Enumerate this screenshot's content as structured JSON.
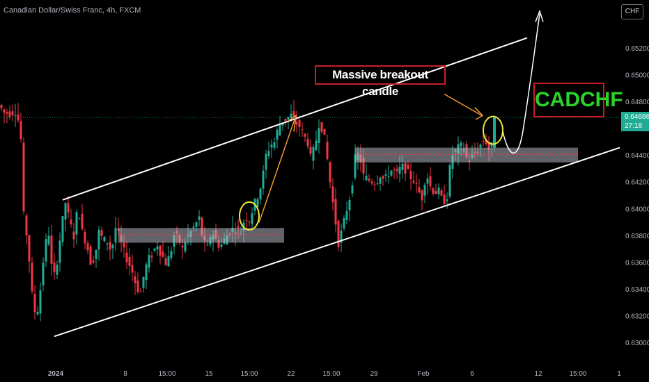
{
  "header": {
    "symbol_title": "Canadian Dollar/Swiss Franc, 4h, FXCM",
    "currency_button": "CHF"
  },
  "annotations": {
    "breakout_label": "Massive breakout candle",
    "pair_label": "CADCHF"
  },
  "price_tag": {
    "price": "0.64686",
    "countdown": "27:18",
    "color": "#22ab94"
  },
  "colors": {
    "background": "#000000",
    "bull": "#22ab94",
    "bear": "#f23645",
    "channel": "#ffffff",
    "zone": "#b2b5be",
    "marker": "#f2e83c",
    "arrow": "#f09a31",
    "box_border": "#c62026",
    "pair_text": "#2bd42b"
  },
  "chart_data": {
    "type": "candlestick",
    "title": "Canadian Dollar/Swiss Franc, 4h, FXCM",
    "y_range": [
      0.6296,
      0.6555
    ],
    "y_ticks": [
      0.63,
      0.632,
      0.634,
      0.636,
      0.638,
      0.64,
      0.642,
      0.644,
      0.646,
      0.648,
      0.65,
      0.652
    ],
    "y_tick_labels": [
      "0.63000",
      "0.63200",
      "0.63400",
      "0.63600",
      "0.63800",
      "0.64000",
      "0.64200",
      "0.64400",
      "0.64600",
      "0.64800",
      "0.65000",
      "0.65200"
    ],
    "x_ticks": [
      "2024",
      "8",
      "15:00",
      "15",
      "15:00",
      "22",
      "15:00",
      "29",
      "Feb",
      "6",
      "12",
      "15:00",
      "1"
    ],
    "last_price": 0.64686,
    "price_path": [
      [
        0,
        0.6478
      ],
      [
        8,
        0.6472
      ],
      [
        18,
        0.6472
      ],
      [
        26,
        0.6474
      ],
      [
        32,
        0.6452
      ],
      [
        36,
        0.6395
      ],
      [
        42,
        0.6375
      ],
      [
        48,
        0.6336
      ],
      [
        54,
        0.6318
      ],
      [
        60,
        0.634
      ],
      [
        66,
        0.6372
      ],
      [
        72,
        0.6382
      ],
      [
        78,
        0.6345
      ],
      [
        84,
        0.6362
      ],
      [
        90,
        0.6385
      ],
      [
        96,
        0.6405
      ],
      [
        102,
        0.639
      ],
      [
        108,
        0.638
      ],
      [
        114,
        0.6403
      ],
      [
        120,
        0.6383
      ],
      [
        126,
        0.6375
      ],
      [
        132,
        0.6361
      ],
      [
        138,
        0.6364
      ],
      [
        144,
        0.6383
      ],
      [
        150,
        0.6377
      ],
      [
        156,
        0.6376
      ],
      [
        162,
        0.6368
      ],
      [
        168,
        0.6386
      ],
      [
        174,
        0.6378
      ],
      [
        180,
        0.6368
      ],
      [
        186,
        0.6361
      ],
      [
        192,
        0.6353
      ],
      [
        198,
        0.6342
      ],
      [
        204,
        0.6338
      ],
      [
        210,
        0.6355
      ],
      [
        216,
        0.6363
      ],
      [
        222,
        0.6368
      ],
      [
        228,
        0.6374
      ],
      [
        234,
        0.6366
      ],
      [
        240,
        0.636
      ],
      [
        246,
        0.6365
      ],
      [
        252,
        0.6381
      ],
      [
        258,
        0.6378
      ],
      [
        264,
        0.637
      ],
      [
        270,
        0.638
      ],
      [
        276,
        0.6383
      ],
      [
        282,
        0.6388
      ],
      [
        288,
        0.6393
      ],
      [
        294,
        0.6375
      ],
      [
        300,
        0.6371
      ],
      [
        306,
        0.6385
      ],
      [
        312,
        0.6377
      ],
      [
        318,
        0.6372
      ],
      [
        324,
        0.6377
      ],
      [
        330,
        0.6383
      ],
      [
        336,
        0.6385
      ],
      [
        342,
        0.6385
      ],
      [
        348,
        0.6383
      ],
      [
        354,
        0.6395
      ],
      [
        360,
        0.6392
      ],
      [
        366,
        0.6402
      ],
      [
        372,
        0.641
      ],
      [
        378,
        0.642
      ],
      [
        384,
        0.644
      ],
      [
        390,
        0.6448
      ],
      [
        396,
        0.645
      ],
      [
        402,
        0.6462
      ],
      [
        408,
        0.6466
      ],
      [
        414,
        0.6468
      ],
      [
        420,
        0.647
      ],
      [
        426,
        0.6465
      ],
      [
        432,
        0.6462
      ],
      [
        438,
        0.6455
      ],
      [
        444,
        0.645
      ],
      [
        448,
        0.6438
      ],
      [
        454,
        0.6446
      ],
      [
        460,
        0.6464
      ],
      [
        466,
        0.646
      ],
      [
        472,
        0.6437
      ],
      [
        478,
        0.6412
      ],
      [
        484,
        0.639
      ],
      [
        488,
        0.6375
      ],
      [
        494,
        0.6386
      ],
      [
        500,
        0.64
      ],
      [
        506,
        0.6413
      ],
      [
        512,
        0.6438
      ],
      [
        518,
        0.6442
      ],
      [
        524,
        0.6425
      ],
      [
        530,
        0.6422
      ],
      [
        536,
        0.6421
      ],
      [
        542,
        0.642
      ],
      [
        548,
        0.6426
      ],
      [
        554,
        0.6421
      ],
      [
        560,
        0.6427
      ],
      [
        566,
        0.643
      ],
      [
        572,
        0.6426
      ],
      [
        578,
        0.6432
      ],
      [
        584,
        0.643
      ],
      [
        590,
        0.6425
      ],
      [
        596,
        0.6422
      ],
      [
        602,
        0.6414
      ],
      [
        608,
        0.6409
      ],
      [
        614,
        0.6428
      ],
      [
        620,
        0.6417
      ],
      [
        626,
        0.6413
      ],
      [
        632,
        0.6413
      ],
      [
        638,
        0.6405
      ],
      [
        644,
        0.641
      ],
      [
        650,
        0.644
      ],
      [
        656,
        0.6443
      ],
      [
        662,
        0.6447
      ],
      [
        668,
        0.6446
      ],
      [
        674,
        0.6435
      ],
      [
        680,
        0.644
      ],
      [
        686,
        0.6443
      ],
      [
        692,
        0.6448
      ],
      [
        698,
        0.6453
      ],
      [
        704,
        0.6445
      ],
      [
        708,
        0.6447
      ],
      [
        712,
        0.6469
      ]
    ],
    "drawings": {
      "channel_upper": [
        [
          90,
          0.6407
        ],
        [
          757,
          0.6528
        ]
      ],
      "channel_lower": [
        [
          78,
          0.6305
        ],
        [
          890,
          0.6446
        ]
      ],
      "support_zone_1": {
        "from": 170,
        "to": 408,
        "top": 0.6386,
        "bottom": 0.6375,
        "line": 0.6381
      },
      "support_zone_2": {
        "from": 510,
        "to": 830,
        "top": 0.6446,
        "bottom": 0.6435,
        "line": 0.6441
      },
      "circles": [
        [
          358,
          0.6395
        ],
        [
          708,
          0.6459
        ]
      ]
    }
  }
}
